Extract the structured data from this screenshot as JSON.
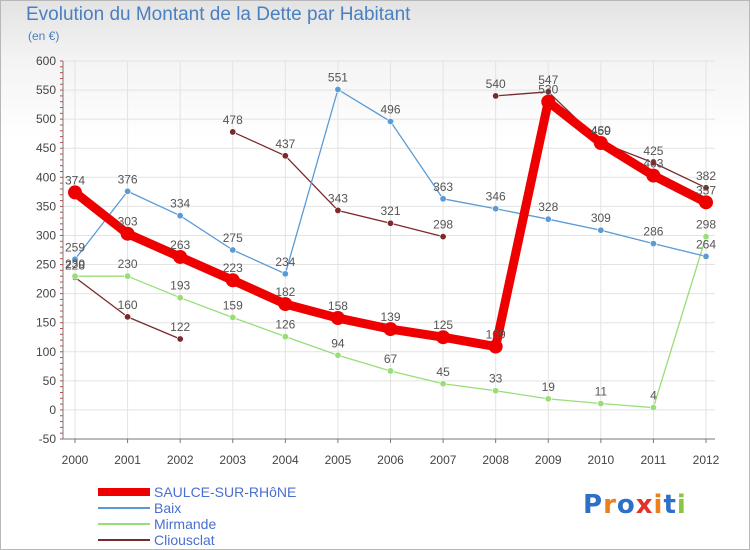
{
  "title": "Evolution du Montant de la Dette par Habitant",
  "subtitle": "(en €)",
  "logo": {
    "text": "Proxiti",
    "colors": [
      "#2e6fc7",
      "#ef7f1a",
      "#2e6fc7",
      "#e4312b",
      "#ef7f1a",
      "#2e6fc7",
      "#8cc63f"
    ]
  },
  "chart_data": {
    "type": "line",
    "title": "Evolution du Montant de la Dette par Habitant",
    "ylabel": "(en €)",
    "xlabel": "",
    "x": [
      "2000",
      "2001",
      "2002",
      "2003",
      "2004",
      "2005",
      "2006",
      "2007",
      "2008",
      "2009",
      "2010",
      "2011",
      "2012"
    ],
    "ylim": [
      -50,
      600
    ],
    "yticks": [
      -50,
      0,
      50,
      100,
      150,
      200,
      250,
      300,
      350,
      400,
      450,
      500,
      550,
      600
    ],
    "grid": true,
    "legend_position": "bottom-left",
    "series": [
      {
        "name": "SAULCE-SUR-RHôNE",
        "color": "#ee0000",
        "bold": true,
        "values": [
          374,
          303,
          263,
          223,
          182,
          158,
          139,
          125,
          109,
          530,
          459,
          403,
          357
        ]
      },
      {
        "name": "Baix",
        "color": "#5b9bd5",
        "bold": false,
        "values": [
          259,
          376,
          334,
          275,
          234,
          551,
          496,
          363,
          346,
          328,
          309,
          286,
          264
        ]
      },
      {
        "name": "Mirmande",
        "color": "#99dd77",
        "bold": false,
        "values": [
          230,
          230,
          193,
          159,
          126,
          94,
          67,
          45,
          33,
          19,
          11,
          4,
          298
        ]
      },
      {
        "name": "Cliousclat",
        "color": "#7a2a2a",
        "bold": false,
        "segments": [
          [
            0,
            2
          ],
          [
            3,
            7
          ],
          [
            8,
            12
          ]
        ],
        "values": [
          228,
          160,
          122,
          478,
          437,
          343,
          321,
          298,
          540,
          547,
          460,
          425,
          382
        ]
      }
    ]
  }
}
